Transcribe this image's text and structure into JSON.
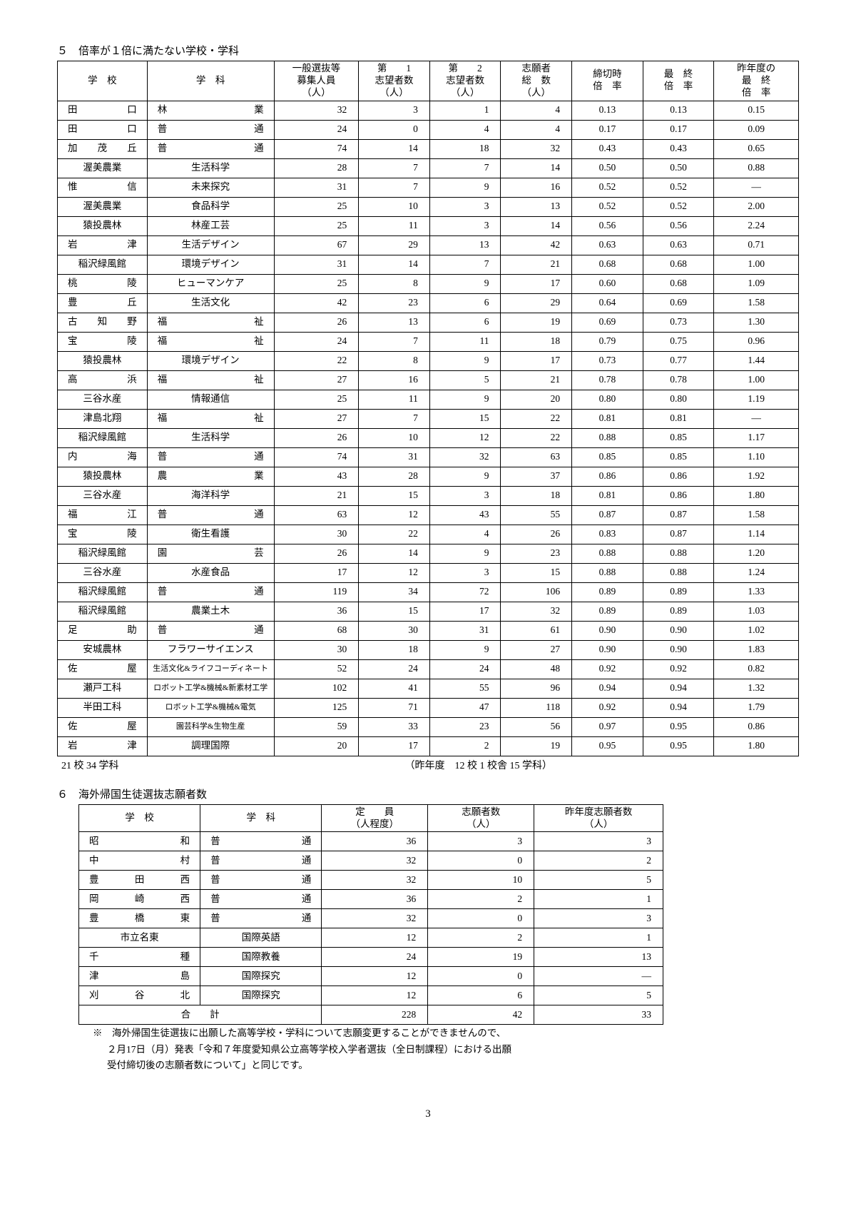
{
  "section5": {
    "title": "５　倍率が１倍に満たない学校・学科",
    "headers": [
      "学　校",
      "学　科",
      "一般選抜等募集人員（人）",
      "第　　1志望者数（人）",
      "第　　2志望者数（人）",
      "志願者総　数（人）",
      "締切時倍　率",
      "最　終倍　率",
      "昨年度の最　終倍　率"
    ],
    "col_widths": [
      "106",
      "150",
      "100",
      "84",
      "84",
      "84",
      "84",
      "84",
      "100"
    ],
    "footer_left": "21 校 34 学科",
    "footer_right": "（昨年度　12 校 1 校舎 15 学科）",
    "rows": [
      [
        "田　口",
        "林　業",
        "32",
        "3",
        "1",
        "4",
        "0.13",
        "0.13",
        "0.15"
      ],
      [
        "田　口",
        "普　通",
        "24",
        "0",
        "4",
        "4",
        "0.17",
        "0.17",
        "0.09"
      ],
      [
        "加茂丘",
        "普　通",
        "74",
        "14",
        "18",
        "32",
        "0.43",
        "0.43",
        "0.65"
      ],
      [
        "渥美農業",
        "生活科学",
        "28",
        "7",
        "7",
        "14",
        "0.50",
        "0.50",
        "0.88"
      ],
      [
        "惟　信",
        "未来探究",
        "31",
        "7",
        "9",
        "16",
        "0.52",
        "0.52",
        "―"
      ],
      [
        "渥美農業",
        "食品科学",
        "25",
        "10",
        "3",
        "13",
        "0.52",
        "0.52",
        "2.00"
      ],
      [
        "猿投農林",
        "林産工芸",
        "25",
        "11",
        "3",
        "14",
        "0.56",
        "0.56",
        "2.24"
      ],
      [
        "岩　津",
        "生活デザイン",
        "67",
        "29",
        "13",
        "42",
        "0.63",
        "0.63",
        "0.71"
      ],
      [
        "稲沢緑風館",
        "環境デザイン",
        "31",
        "14",
        "7",
        "21",
        "0.68",
        "0.68",
        "1.00"
      ],
      [
        "桃　陵",
        "ヒューマンケア",
        "25",
        "8",
        "9",
        "17",
        "0.60",
        "0.68",
        "1.09"
      ],
      [
        "豊　丘",
        "生活文化",
        "42",
        "23",
        "6",
        "29",
        "0.64",
        "0.69",
        "1.58"
      ],
      [
        "古知野",
        "福　祉",
        "26",
        "13",
        "6",
        "19",
        "0.69",
        "0.73",
        "1.30"
      ],
      [
        "宝　陵",
        "福　祉",
        "24",
        "7",
        "11",
        "18",
        "0.79",
        "0.75",
        "0.96"
      ],
      [
        "猿投農林",
        "環境デザイン",
        "22",
        "8",
        "9",
        "17",
        "0.73",
        "0.77",
        "1.44"
      ],
      [
        "高　浜",
        "福　祉",
        "27",
        "16",
        "5",
        "21",
        "0.78",
        "0.78",
        "1.00"
      ],
      [
        "三谷水産",
        "情報通信",
        "25",
        "11",
        "9",
        "20",
        "0.80",
        "0.80",
        "1.19"
      ],
      [
        "津島北翔",
        "福　祉",
        "27",
        "7",
        "15",
        "22",
        "0.81",
        "0.81",
        "―"
      ],
      [
        "稲沢緑風館",
        "生活科学",
        "26",
        "10",
        "12",
        "22",
        "0.88",
        "0.85",
        "1.17"
      ],
      [
        "内　海",
        "普　通",
        "74",
        "31",
        "32",
        "63",
        "0.85",
        "0.85",
        "1.10"
      ],
      [
        "猿投農林",
        "農　業",
        "43",
        "28",
        "9",
        "37",
        "0.86",
        "0.86",
        "1.92"
      ],
      [
        "三谷水産",
        "海洋科学",
        "21",
        "15",
        "3",
        "18",
        "0.81",
        "0.86",
        "1.80"
      ],
      [
        "福　江",
        "普　通",
        "63",
        "12",
        "43",
        "55",
        "0.87",
        "0.87",
        "1.58"
      ],
      [
        "宝　陵",
        "衛生看護",
        "30",
        "22",
        "4",
        "26",
        "0.83",
        "0.87",
        "1.14"
      ],
      [
        "稲沢緑風館",
        "園　芸",
        "26",
        "14",
        "9",
        "23",
        "0.88",
        "0.88",
        "1.20"
      ],
      [
        "三谷水産",
        "水産食品",
        "17",
        "12",
        "3",
        "15",
        "0.88",
        "0.88",
        "1.24"
      ],
      [
        "稲沢緑風館",
        "普　通",
        "119",
        "34",
        "72",
        "106",
        "0.89",
        "0.89",
        "1.33"
      ],
      [
        "稲沢緑風館",
        "農業土木",
        "36",
        "15",
        "17",
        "32",
        "0.89",
        "0.89",
        "1.03"
      ],
      [
        "足　助",
        "普　通",
        "68",
        "30",
        "31",
        "61",
        "0.90",
        "0.90",
        "1.02"
      ],
      [
        "安城農林",
        "フラワーサイエンス",
        "30",
        "18",
        "9",
        "27",
        "0.90",
        "0.90",
        "1.83"
      ],
      [
        "佐　屋",
        "生活文化&ライフコーディネート",
        "52",
        "24",
        "24",
        "48",
        "0.92",
        "0.92",
        "0.82"
      ],
      [
        "瀬戸工科",
        "ロボット工学&機械&新素材工学",
        "102",
        "41",
        "55",
        "96",
        "0.94",
        "0.94",
        "1.32"
      ],
      [
        "半田工科",
        "ロボット工学&機械&電気",
        "125",
        "71",
        "47",
        "118",
        "0.92",
        "0.94",
        "1.79"
      ],
      [
        "佐　屋",
        "園芸科学&生物生産",
        "59",
        "33",
        "23",
        "56",
        "0.97",
        "0.95",
        "0.86"
      ],
      [
        "岩　津",
        "調理国際",
        "20",
        "17",
        "2",
        "19",
        "0.95",
        "0.95",
        "1.80"
      ]
    ],
    "small_rows": [
      29,
      30,
      31,
      32
    ]
  },
  "section6": {
    "title": "６　海外帰国生徒選抜志願者数",
    "headers": [
      "学　校",
      "学　科",
      "定　　員（人程度）",
      "志願者数（人）",
      "昨年度志願者数（人）"
    ],
    "col_widths": [
      "160",
      "160",
      "140",
      "140",
      "170"
    ],
    "rows": [
      [
        "昭　和",
        "普　通",
        "36",
        "3",
        "3"
      ],
      [
        "中　村",
        "普　通",
        "32",
        "0",
        "2"
      ],
      [
        "豊田西",
        "普　通",
        "32",
        "10",
        "5"
      ],
      [
        "岡崎西",
        "普　通",
        "36",
        "2",
        "1"
      ],
      [
        "豊橋東",
        "普　通",
        "32",
        "0",
        "3"
      ],
      [
        "市立名東",
        "国際英語",
        "12",
        "2",
        "1"
      ],
      [
        "千　種",
        "国際教養",
        "24",
        "19",
        "13"
      ],
      [
        "津　島",
        "国際探究",
        "12",
        "0",
        "―"
      ],
      [
        "刈谷北",
        "国際探究",
        "12",
        "6",
        "5"
      ]
    ],
    "total_label": "合　　計",
    "total": [
      "228",
      "42",
      "33"
    ],
    "note1": "※　海外帰国生徒選抜に出願した高等学校・学科について志願変更することができませんので、",
    "note2": "２月17日（月）発表「令和７年度愛知県公立高等学校入学者選抜（全日制課程）における出願",
    "note3": "受付締切後の志願者数について」と同じです。"
  },
  "page_number": "3"
}
